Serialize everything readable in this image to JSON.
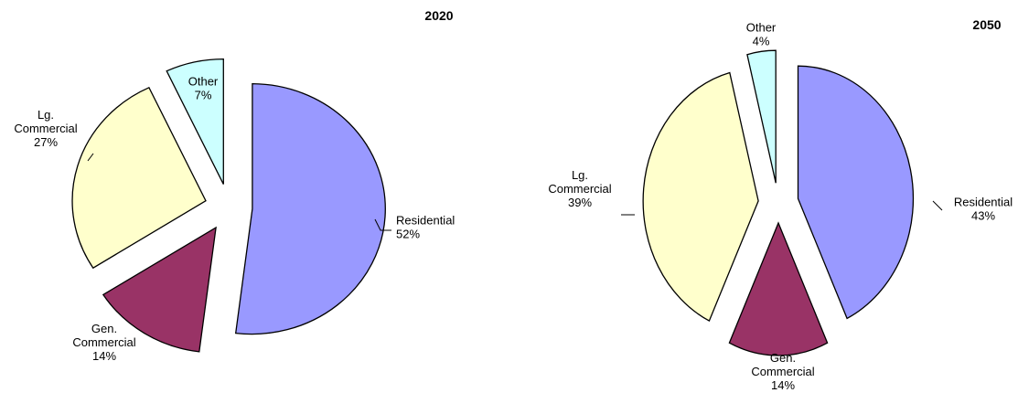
{
  "chart_data": [
    {
      "type": "pie",
      "title": "2020",
      "categories": [
        "Residential",
        "Gen. Commercial",
        "Lg. Commercial",
        "Other"
      ],
      "values": [
        52,
        14,
        27,
        7
      ],
      "value_labels": [
        "52%",
        "14%",
        "27%",
        "7%"
      ],
      "label_lines": [
        [
          "Residential"
        ],
        [
          "Gen.",
          "Commercial"
        ],
        [
          "Lg.",
          "Commercial"
        ],
        [
          "Other"
        ]
      ],
      "colors": [
        "#9999ff",
        "#993366",
        "#ffffcc",
        "#ccffff"
      ],
      "exploded": true,
      "legend": "none"
    },
    {
      "type": "pie",
      "title": "2050",
      "categories": [
        "Residential",
        "Gen. Commercial",
        "Lg. Commercial",
        "Other"
      ],
      "values": [
        43,
        14,
        39,
        4
      ],
      "value_labels": [
        "43%",
        "14%",
        "39%",
        "4%"
      ],
      "label_lines": [
        [
          "Residential"
        ],
        [
          "Gen.",
          "Commercial"
        ],
        [
          "Lg.",
          "Commercial"
        ],
        [
          "Other"
        ]
      ],
      "colors": [
        "#9999ff",
        "#993366",
        "#ffffcc",
        "#ccffff"
      ],
      "exploded": true,
      "legend": "none"
    }
  ]
}
